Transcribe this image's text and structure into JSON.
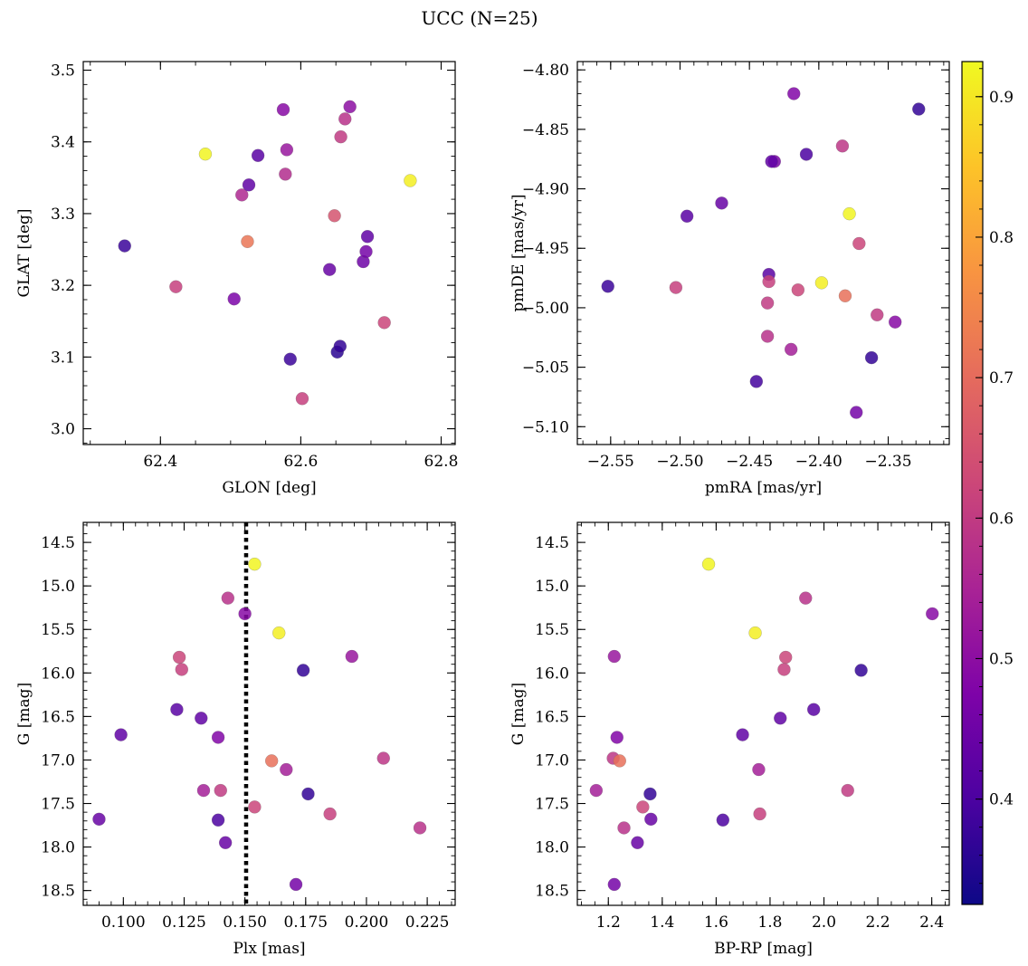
{
  "figure": {
    "title": "UCC (N=25)"
  },
  "colormap": {
    "name": "plasma",
    "range": [
      0.325,
      0.925
    ],
    "ticks": [
      "0.4",
      "0.5",
      "0.6",
      "0.7",
      "0.8",
      "0.9"
    ]
  },
  "chart_data": [
    {
      "type": "scatter",
      "xlabel": "GLON [deg]",
      "ylabel": "GLAT [deg]",
      "xlim": [
        62.29,
        62.82
      ],
      "ylim": [
        2.978,
        3.512
      ],
      "y_inverted": false,
      "xticks": [
        "62.4",
        "62.6",
        "62.8"
      ],
      "yticks": [
        "3.0",
        "3.1",
        "3.2",
        "3.3",
        "3.4",
        "3.5"
      ],
      "points": [
        {
          "x": 62.349,
          "y": 3.255,
          "c": 0.38
        },
        {
          "x": 62.422,
          "y": 3.198,
          "c": 0.61
        },
        {
          "x": 62.464,
          "y": 3.383,
          "c": 0.92
        },
        {
          "x": 62.505,
          "y": 3.181,
          "c": 0.47
        },
        {
          "x": 62.516,
          "y": 3.326,
          "c": 0.56
        },
        {
          "x": 62.524,
          "y": 3.261,
          "c": 0.72
        },
        {
          "x": 62.526,
          "y": 3.34,
          "c": 0.43
        },
        {
          "x": 62.539,
          "y": 3.381,
          "c": 0.42
        },
        {
          "x": 62.575,
          "y": 3.445,
          "c": 0.49
        },
        {
          "x": 62.578,
          "y": 3.355,
          "c": 0.57
        },
        {
          "x": 62.58,
          "y": 3.389,
          "c": 0.52
        },
        {
          "x": 62.585,
          "y": 3.097,
          "c": 0.38
        },
        {
          "x": 62.602,
          "y": 3.042,
          "c": 0.61
        },
        {
          "x": 62.641,
          "y": 3.222,
          "c": 0.44
        },
        {
          "x": 62.648,
          "y": 3.297,
          "c": 0.65
        },
        {
          "x": 62.652,
          "y": 3.107,
          "c": 0.36
        },
        {
          "x": 62.656,
          "y": 3.115,
          "c": 0.37
        },
        {
          "x": 62.657,
          "y": 3.407,
          "c": 0.6
        },
        {
          "x": 62.663,
          "y": 3.432,
          "c": 0.58
        },
        {
          "x": 62.67,
          "y": 3.449,
          "c": 0.5
        },
        {
          "x": 62.689,
          "y": 3.233,
          "c": 0.45
        },
        {
          "x": 62.693,
          "y": 3.247,
          "c": 0.46
        },
        {
          "x": 62.695,
          "y": 3.268,
          "c": 0.43
        },
        {
          "x": 62.719,
          "y": 3.148,
          "c": 0.62
        },
        {
          "x": 62.756,
          "y": 3.346,
          "c": 0.91
        }
      ]
    },
    {
      "type": "scatter",
      "xlabel": "pmRA [mas/yr]",
      "ylabel": "pmDE [mas/yr]",
      "xlim": [
        -2.574,
        -2.306
      ],
      "ylim": [
        -5.115,
        -4.793
      ],
      "y_inverted": false,
      "xticks": [
        "−2.55",
        "−2.50",
        "−2.45",
        "−2.40",
        "−2.35"
      ],
      "yticks": [
        "−5.10",
        "−5.05",
        "−5.00",
        "−4.95",
        "−4.90",
        "−4.85",
        "−4.80"
      ],
      "points": [
        {
          "x": -2.552,
          "y": -4.982,
          "c": 0.38
        },
        {
          "x": -2.503,
          "y": -4.983,
          "c": 0.61
        },
        {
          "x": -2.495,
          "y": -4.923,
          "c": 0.42
        },
        {
          "x": -2.47,
          "y": -4.912,
          "c": 0.44
        },
        {
          "x": -2.445,
          "y": -5.062,
          "c": 0.39
        },
        {
          "x": -2.436,
          "y": -4.972,
          "c": 0.42
        },
        {
          "x": -2.436,
          "y": -4.978,
          "c": 0.61
        },
        {
          "x": -2.437,
          "y": -4.996,
          "c": 0.6
        },
        {
          "x": -2.437,
          "y": -5.024,
          "c": 0.58
        },
        {
          "x": -2.432,
          "y": -4.877,
          "c": 0.47
        },
        {
          "x": -2.434,
          "y": -4.877,
          "c": 0.43
        },
        {
          "x": -2.42,
          "y": -5.035,
          "c": 0.54
        },
        {
          "x": -2.418,
          "y": -4.82,
          "c": 0.48
        },
        {
          "x": -2.415,
          "y": -4.985,
          "c": 0.62
        },
        {
          "x": -2.409,
          "y": -4.871,
          "c": 0.4
        },
        {
          "x": -2.398,
          "y": -4.979,
          "c": 0.91
        },
        {
          "x": -2.383,
          "y": -4.864,
          "c": 0.59
        },
        {
          "x": -2.381,
          "y": -4.99,
          "c": 0.71
        },
        {
          "x": -2.378,
          "y": -4.921,
          "c": 0.92
        },
        {
          "x": -2.373,
          "y": -5.088,
          "c": 0.46
        },
        {
          "x": -2.371,
          "y": -4.946,
          "c": 0.62
        },
        {
          "x": -2.362,
          "y": -5.042,
          "c": 0.37
        },
        {
          "x": -2.358,
          "y": -5.006,
          "c": 0.6
        },
        {
          "x": -2.345,
          "y": -5.012,
          "c": 0.49
        },
        {
          "x": -2.328,
          "y": -4.833,
          "c": 0.37
        }
      ]
    },
    {
      "type": "scatter",
      "xlabel": "Plx [mas]",
      "ylabel": "G [mag]",
      "xlim": [
        0.0835,
        0.2365
      ],
      "ylim": [
        18.67,
        14.27
      ],
      "y_inverted": true,
      "xticks": [
        "0.100",
        "0.125",
        "0.150",
        "0.175",
        "0.200",
        "0.225"
      ],
      "yticks": [
        "14.5",
        "15.0",
        "15.5",
        "16.0",
        "16.5",
        "17.0",
        "17.5",
        "18.0",
        "18.5"
      ],
      "vline": {
        "x": 0.1505,
        "style": "dotted"
      },
      "points": [
        {
          "x": 0.09,
          "y": 17.68,
          "c": 0.44
        },
        {
          "x": 0.099,
          "y": 16.71,
          "c": 0.43
        },
        {
          "x": 0.122,
          "y": 16.42,
          "c": 0.42
        },
        {
          "x": 0.123,
          "y": 15.82,
          "c": 0.62
        },
        {
          "x": 0.124,
          "y": 15.96,
          "c": 0.61
        },
        {
          "x": 0.132,
          "y": 16.52,
          "c": 0.43
        },
        {
          "x": 0.133,
          "y": 17.35,
          "c": 0.54
        },
        {
          "x": 0.139,
          "y": 16.74,
          "c": 0.48
        },
        {
          "x": 0.139,
          "y": 17.69,
          "c": 0.4
        },
        {
          "x": 0.14,
          "y": 17.35,
          "c": 0.6
        },
        {
          "x": 0.142,
          "y": 17.95,
          "c": 0.44
        },
        {
          "x": 0.143,
          "y": 15.14,
          "c": 0.58
        },
        {
          "x": 0.15,
          "y": 15.32,
          "c": 0.49
        },
        {
          "x": 0.154,
          "y": 14.75,
          "c": 0.92
        },
        {
          "x": 0.154,
          "y": 17.54,
          "c": 0.62
        },
        {
          "x": 0.161,
          "y": 17.01,
          "c": 0.71
        },
        {
          "x": 0.164,
          "y": 15.54,
          "c": 0.91
        },
        {
          "x": 0.167,
          "y": 17.11,
          "c": 0.54
        },
        {
          "x": 0.171,
          "y": 18.43,
          "c": 0.46
        },
        {
          "x": 0.174,
          "y": 15.97,
          "c": 0.37
        },
        {
          "x": 0.176,
          "y": 17.39,
          "c": 0.37
        },
        {
          "x": 0.185,
          "y": 17.62,
          "c": 0.61
        },
        {
          "x": 0.194,
          "y": 15.81,
          "c": 0.52
        },
        {
          "x": 0.207,
          "y": 16.98,
          "c": 0.59
        },
        {
          "x": 0.222,
          "y": 17.78,
          "c": 0.58
        }
      ]
    },
    {
      "type": "scatter",
      "xlabel": "BP-RP [mag]",
      "ylabel": "G [mag]",
      "xlim": [
        1.085,
        2.465
      ],
      "ylim": [
        18.67,
        14.27
      ],
      "y_inverted": true,
      "xticks": [
        "1.2",
        "1.4",
        "1.6",
        "1.8",
        "2.0",
        "2.2",
        "2.4"
      ],
      "yticks": [
        "14.5",
        "15.0",
        "15.5",
        "16.0",
        "16.5",
        "17.0",
        "17.5",
        "18.0",
        "18.5"
      ],
      "points": [
        {
          "x": 1.155,
          "y": 17.35,
          "c": 0.54
        },
        {
          "x": 1.218,
          "y": 16.98,
          "c": 0.59
        },
        {
          "x": 1.222,
          "y": 15.81,
          "c": 0.52
        },
        {
          "x": 1.222,
          "y": 18.43,
          "c": 0.46
        },
        {
          "x": 1.232,
          "y": 16.74,
          "c": 0.48
        },
        {
          "x": 1.242,
          "y": 17.01,
          "c": 0.71
        },
        {
          "x": 1.258,
          "y": 17.78,
          "c": 0.58
        },
        {
          "x": 1.308,
          "y": 17.95,
          "c": 0.44
        },
        {
          "x": 1.328,
          "y": 17.54,
          "c": 0.62
        },
        {
          "x": 1.355,
          "y": 17.39,
          "c": 0.37
        },
        {
          "x": 1.358,
          "y": 17.68,
          "c": 0.44
        },
        {
          "x": 1.572,
          "y": 14.75,
          "c": 0.92
        },
        {
          "x": 1.625,
          "y": 17.69,
          "c": 0.4
        },
        {
          "x": 1.698,
          "y": 16.71,
          "c": 0.43
        },
        {
          "x": 1.745,
          "y": 15.54,
          "c": 0.91
        },
        {
          "x": 1.758,
          "y": 17.11,
          "c": 0.54
        },
        {
          "x": 1.762,
          "y": 17.62,
          "c": 0.61
        },
        {
          "x": 1.838,
          "y": 16.52,
          "c": 0.43
        },
        {
          "x": 1.852,
          "y": 15.96,
          "c": 0.61
        },
        {
          "x": 1.858,
          "y": 15.82,
          "c": 0.62
        },
        {
          "x": 1.932,
          "y": 15.14,
          "c": 0.58
        },
        {
          "x": 1.962,
          "y": 16.42,
          "c": 0.42
        },
        {
          "x": 2.088,
          "y": 17.35,
          "c": 0.6
        },
        {
          "x": 2.138,
          "y": 15.97,
          "c": 0.37
        },
        {
          "x": 2.402,
          "y": 15.32,
          "c": 0.49
        }
      ]
    }
  ]
}
